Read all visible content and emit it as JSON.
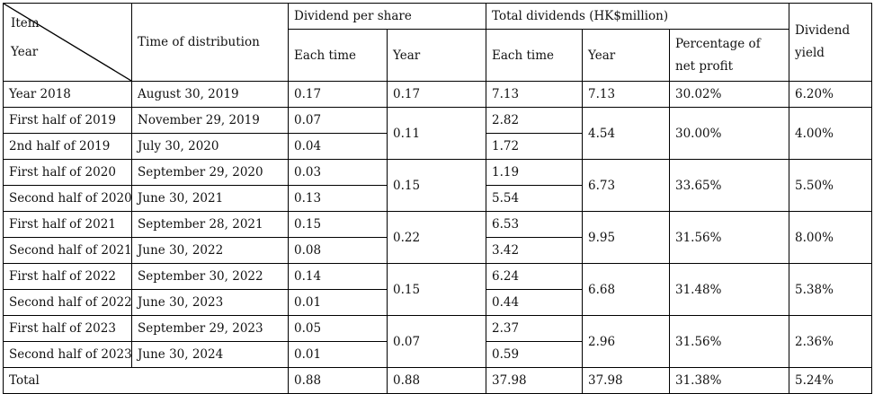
{
  "header": {
    "item_label": "Item",
    "year_label": "Year",
    "time_of_distribution": "Time of distribution",
    "dividend_per_share": "Dividend per share",
    "total_dividends": "Total dividends (HK$million)",
    "dividend_yield": "Dividend yield",
    "dps_each_time": "Each time",
    "dps_year": "Year",
    "td_each_time": "Each time",
    "td_year": "Year",
    "td_percentage": "Percentage of net profit"
  },
  "rows": [
    {
      "period": "Year 2018",
      "time": "August 30, 2019",
      "dps_each": "0.17",
      "td_each": "7.13"
    },
    {
      "period": "First half of 2019",
      "time": "November 29, 2019",
      "dps_each": "0.07",
      "td_each": "2.82"
    },
    {
      "period": "2nd half of 2019",
      "time": "July 30, 2020",
      "dps_each": "0.04",
      "td_each": "1.72"
    },
    {
      "period": "First half of 2020",
      "time": "September 29, 2020",
      "dps_each": "0.03",
      "td_each": "1.19"
    },
    {
      "period": "Second half of 2020",
      "time": "June 30, 2021",
      "dps_each": "0.13",
      "td_each": "5.54"
    },
    {
      "period": "First half of 2021",
      "time": "September 28, 2021",
      "dps_each": "0.15",
      "td_each": "6.53"
    },
    {
      "period": "Second half of 2021",
      "time": "June 30, 2022",
      "dps_each": "0.08",
      "td_each": "3.42"
    },
    {
      "period": "First half of 2022",
      "time": "September 30, 2022",
      "dps_each": "0.14",
      "td_each": "6.24"
    },
    {
      "period": "Second half of 2022",
      "time": "June 30, 2023",
      "dps_each": "0.01",
      "td_each": "0.44"
    },
    {
      "period": "First half of 2023",
      "time": "September 29, 2023",
      "dps_each": "0.05",
      "td_each": "2.37"
    },
    {
      "period": "Second half of 2023",
      "time": "June 30, 2024",
      "dps_each": "0.01",
      "td_each": "0.59"
    }
  ],
  "groups": [
    {
      "dps_year": "0.17",
      "td_year": "7.13",
      "percentage": "30.02%",
      "yield": "6.20%"
    },
    {
      "dps_year": "0.11",
      "td_year": "4.54",
      "percentage": "30.00%",
      "yield": "4.00%"
    },
    {
      "dps_year": "0.15",
      "td_year": "6.73",
      "percentage": "33.65%",
      "yield": "5.50%"
    },
    {
      "dps_year": "0.22",
      "td_year": "9.95",
      "percentage": "31.56%",
      "yield": "8.00%"
    },
    {
      "dps_year": "0.15",
      "td_year": "6.68",
      "percentage": "31.48%",
      "yield": "5.38%"
    },
    {
      "dps_year": "0.07",
      "td_year": "2.96",
      "percentage": "31.56%",
      "yield": "2.36%"
    }
  ],
  "total": {
    "label": "Total",
    "dps_each": "0.88",
    "dps_year": "0.88",
    "td_each": "37.98",
    "td_year": "37.98",
    "percentage": "31.38%",
    "yield": "5.24%"
  }
}
